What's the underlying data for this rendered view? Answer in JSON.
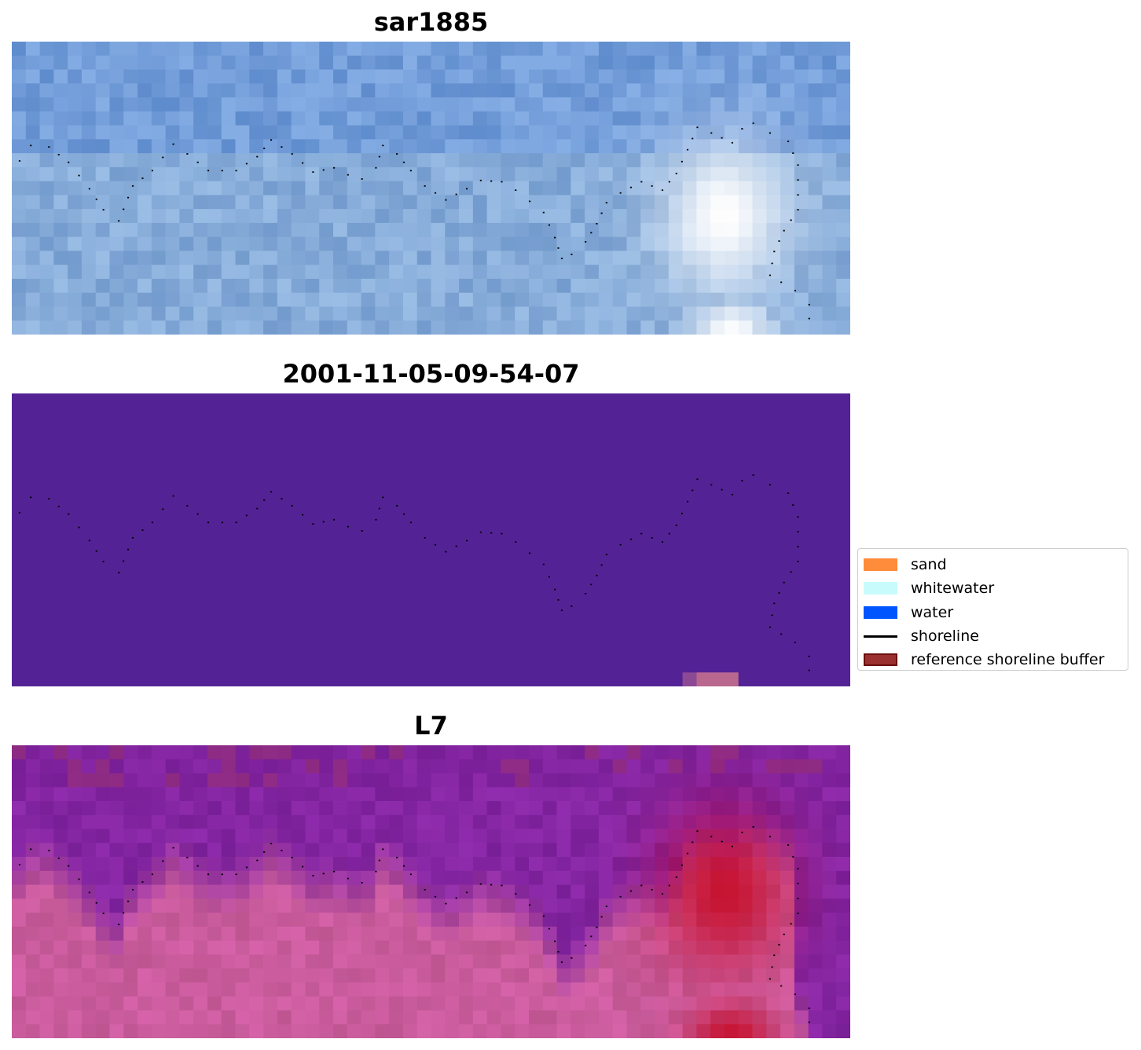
{
  "panels": [
    {
      "title": "sar1885"
    },
    {
      "title": "2001-11-05-09-54-07"
    },
    {
      "title": "L7"
    }
  ],
  "legend": {
    "items": [
      {
        "label": "sand",
        "color": "#ff8c3a",
        "kind": "patch"
      },
      {
        "label": "whitewater",
        "color": "#c8fbfb",
        "kind": "patch"
      },
      {
        "label": "water",
        "color": "#0055ff",
        "kind": "patch"
      },
      {
        "label": "shoreline",
        "color": "#000000",
        "kind": "line"
      },
      {
        "label": "reference shoreline buffer",
        "color": "#9a3030",
        "kind": "patch"
      }
    ]
  },
  "colors": {
    "classification_background": "#532396",
    "classification_patch": "#b9678f",
    "shoreline_dots": "#000000"
  }
}
